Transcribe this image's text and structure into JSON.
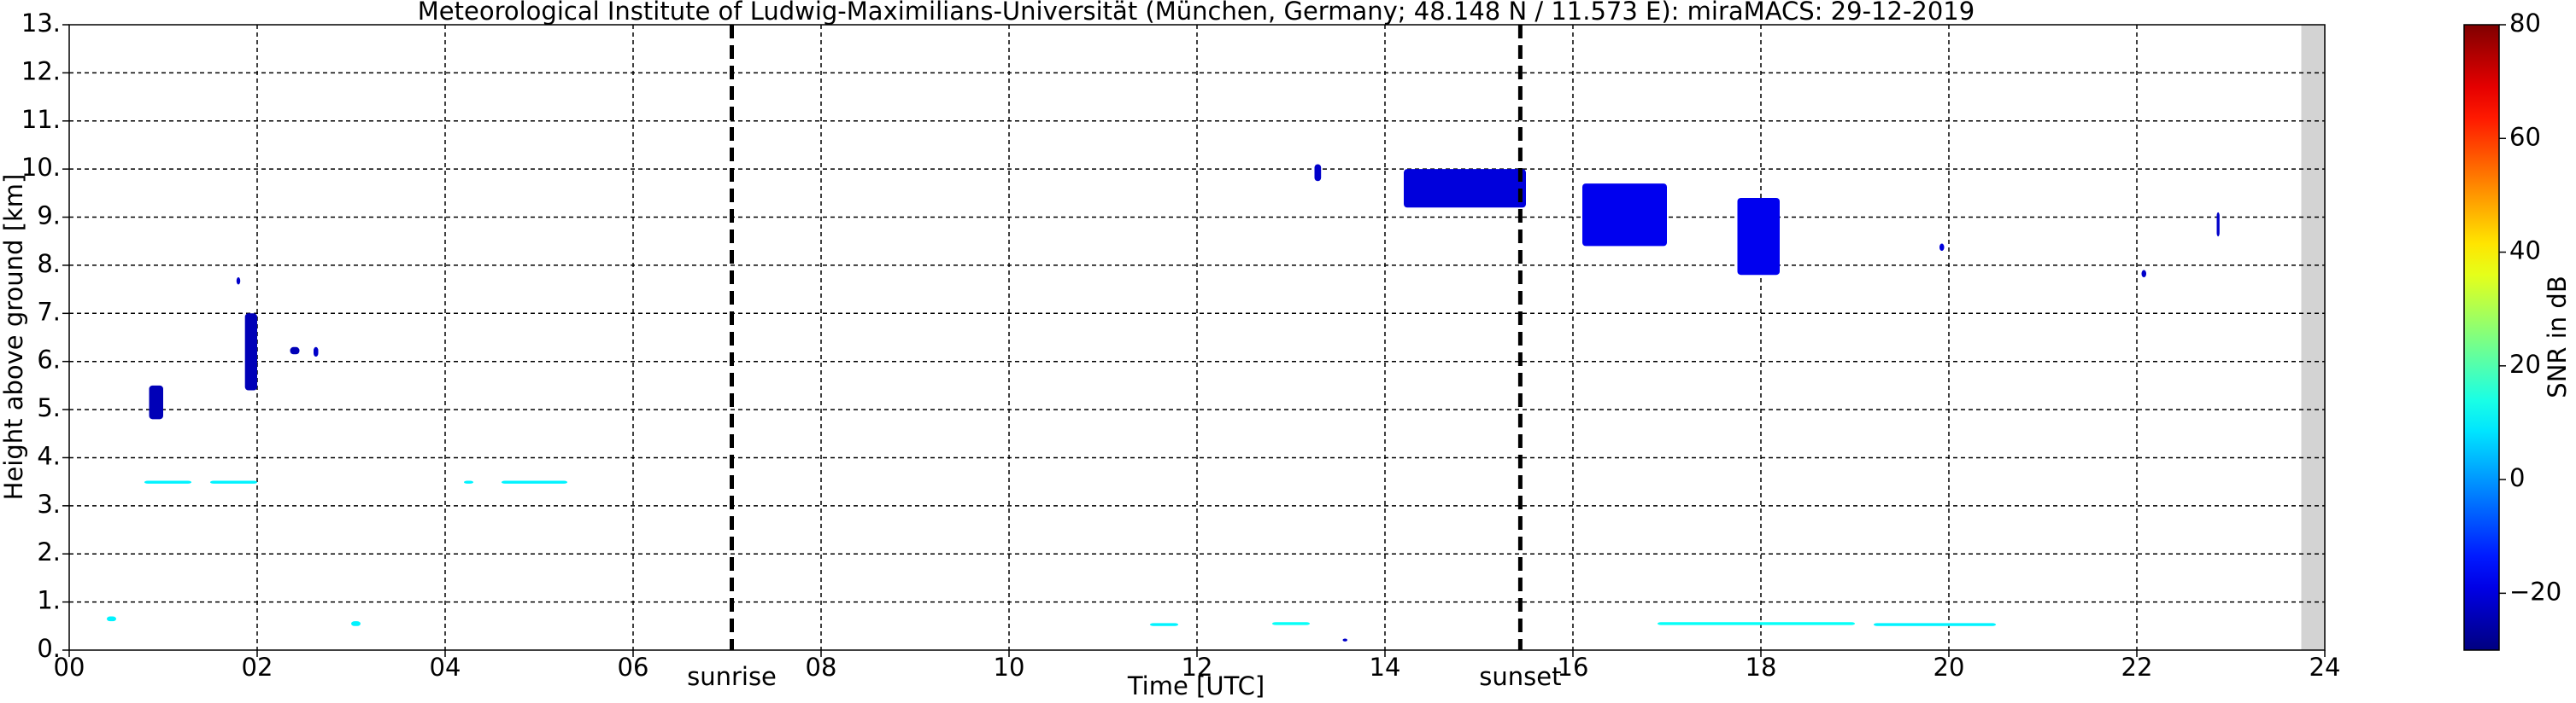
{
  "chart_data": {
    "type": "time-height",
    "title": "Meteorological Institute of Ludwig-Maximilians-Universität (München, Germany; 48.148 N / 11.573 E):    miraMACS: 29-12-2019",
    "x_label": "Time [UTC]",
    "y_label": "Height above ground [km]",
    "xlim": [
      0,
      24
    ],
    "ylim": [
      0,
      13
    ],
    "xticks": [
      {
        "value": 0,
        "label": "00"
      },
      {
        "value": 2,
        "label": "02"
      },
      {
        "value": 4,
        "label": "04"
      },
      {
        "value": 6,
        "label": "06"
      },
      {
        "value": 8,
        "label": "08"
      },
      10,
      12,
      14,
      16,
      18,
      20,
      22,
      24
    ],
    "yticks": [
      {
        "value": 0,
        "label": "0."
      },
      {
        "value": 1,
        "label": "1."
      },
      {
        "value": 2,
        "label": "2."
      },
      {
        "value": 3,
        "label": "3."
      },
      {
        "value": 4,
        "label": "4."
      },
      {
        "value": 5,
        "label": "5."
      },
      {
        "value": 6,
        "label": "6."
      },
      {
        "value": 7,
        "label": "7."
      },
      {
        "value": 8,
        "label": "8."
      },
      {
        "value": 9,
        "label": "9."
      },
      {
        "value": 10,
        "label": "10."
      },
      {
        "value": 11,
        "label": "11."
      },
      {
        "value": 12,
        "label": "12."
      },
      {
        "value": 13,
        "label": "13."
      }
    ],
    "grid": true,
    "annotations": [
      {
        "label": "sunrise",
        "x": 7.05
      },
      {
        "label": "sunset",
        "x": 15.44
      }
    ],
    "no_data_from": 23.75,
    "colorbar": {
      "label": "SNR in dB",
      "lim": [
        -30,
        80
      ],
      "ticks": [
        {
          "value": -20,
          "label": "−20"
        },
        0,
        20,
        40,
        60,
        80
      ]
    },
    "cells": [
      {
        "x0": 0.85,
        "x1": 1.0,
        "y0": 4.8,
        "y1": 5.5,
        "snr": -24
      },
      {
        "x0": 1.78,
        "x1": 1.82,
        "y0": 7.6,
        "y1": 7.75,
        "snr": -22
      },
      {
        "x0": 1.87,
        "x1": 2.0,
        "y0": 5.4,
        "y1": 7.0,
        "snr": -24
      },
      {
        "x0": 2.35,
        "x1": 2.45,
        "y0": 6.15,
        "y1": 6.3,
        "snr": -24
      },
      {
        "x0": 2.6,
        "x1": 2.65,
        "y0": 6.1,
        "y1": 6.3,
        "snr": -22
      },
      {
        "x0": 13.25,
        "x1": 13.32,
        "y0": 9.75,
        "y1": 10.1,
        "snr": -22
      },
      {
        "x0": 14.2,
        "x1": 15.5,
        "y0": 9.2,
        "y1": 10.0,
        "snr": -20
      },
      {
        "x0": 16.1,
        "x1": 17.0,
        "y0": 8.4,
        "y1": 9.7,
        "snr": -18
      },
      {
        "x0": 17.75,
        "x1": 18.2,
        "y0": 7.8,
        "y1": 9.4,
        "snr": -18
      },
      {
        "x0": 19.9,
        "x1": 19.95,
        "y0": 8.3,
        "y1": 8.45,
        "snr": -20
      },
      {
        "x0": 22.05,
        "x1": 22.1,
        "y0": 7.75,
        "y1": 7.9,
        "snr": -22
      },
      {
        "x0": 22.85,
        "x1": 22.88,
        "y0": 8.6,
        "y1": 9.1,
        "snr": -22
      },
      {
        "x0": 0.8,
        "x1": 1.3,
        "y0": 3.46,
        "y1": 3.52,
        "snr": 10
      },
      {
        "x0": 1.5,
        "x1": 2.0,
        "y0": 3.46,
        "y1": 3.52,
        "snr": 10
      },
      {
        "x0": 4.2,
        "x1": 4.3,
        "y0": 3.46,
        "y1": 3.52,
        "snr": 10
      },
      {
        "x0": 4.6,
        "x1": 5.3,
        "y0": 3.46,
        "y1": 3.52,
        "snr": 10
      },
      {
        "x0": 0.4,
        "x1": 0.5,
        "y0": 0.6,
        "y1": 0.7,
        "snr": 10
      },
      {
        "x0": 3.0,
        "x1": 3.1,
        "y0": 0.5,
        "y1": 0.6,
        "snr": 10
      },
      {
        "x0": 11.5,
        "x1": 11.8,
        "y0": 0.5,
        "y1": 0.56,
        "snr": 10
      },
      {
        "x0": 12.8,
        "x1": 13.2,
        "y0": 0.52,
        "y1": 0.58,
        "snr": 12
      },
      {
        "x0": 13.55,
        "x1": 13.6,
        "y0": 0.18,
        "y1": 0.24,
        "snr": -22
      },
      {
        "x0": 16.9,
        "x1": 19.0,
        "y0": 0.52,
        "y1": 0.58,
        "snr": 12
      },
      {
        "x0": 19.2,
        "x1": 20.5,
        "y0": 0.5,
        "y1": 0.56,
        "snr": 10
      }
    ]
  }
}
